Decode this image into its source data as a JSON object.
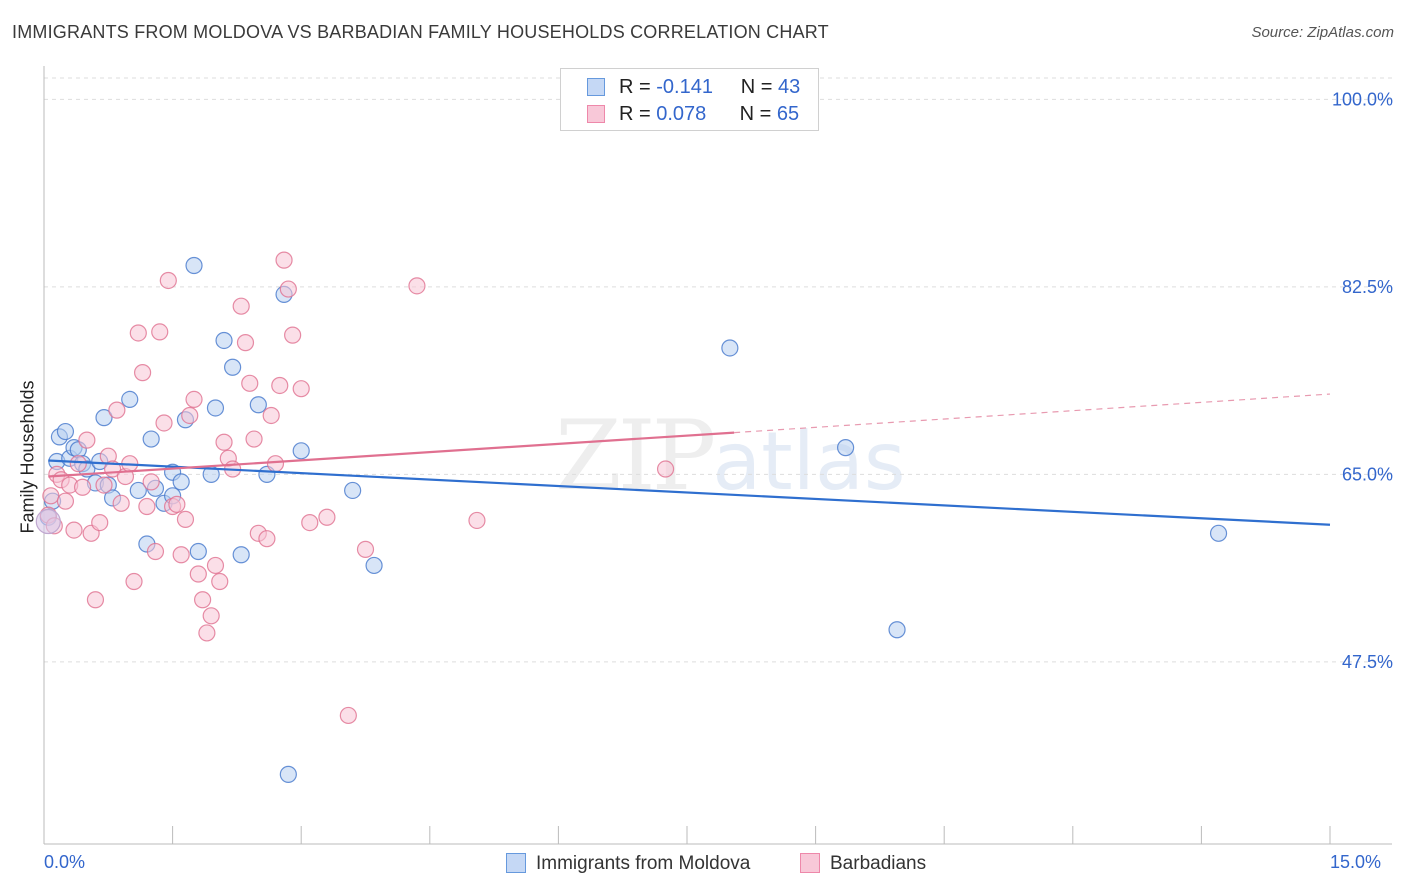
{
  "title": "IMMIGRANTS FROM MOLDOVA VS BARBADIAN FAMILY HOUSEHOLDS CORRELATION CHART",
  "source": "Source: ZipAtlas.com",
  "watermark": {
    "zip": "ZIP",
    "atlas": "atlas"
  },
  "legend": {
    "rows": [
      {
        "r_label": "R =",
        "r_value": "-0.141",
        "n_label": "N =",
        "n_value": "43",
        "color": "#6699dd",
        "fill": "#c5d8f5"
      },
      {
        "r_label": "R =",
        "r_value": "0.078",
        "n_label": "N =",
        "n_value": "65",
        "color": "#ee88aa",
        "fill": "#f8c8d8"
      }
    ]
  },
  "chart_data": {
    "type": "scatter",
    "title": "IMMIGRANTS FROM MOLDOVA VS BARBADIAN FAMILY HOUSEHOLDS CORRELATION CHART",
    "xlabel": "",
    "ylabel": "Family Households",
    "xlim": [
      0,
      15
    ],
    "ylim": [
      30.5,
      102
    ],
    "x_tick_labels": [
      "0.0%",
      "15.0%"
    ],
    "y_ticks": [
      47.5,
      65.0,
      82.5,
      100.0
    ],
    "y_tick_labels": [
      "47.5%",
      "65.0%",
      "82.5%",
      "100.0%"
    ],
    "grid": true,
    "series": [
      {
        "name": "Immigrants from Moldova",
        "color": "#4477cc",
        "fill": "#b8d0f0",
        "trend": {
          "x": [
            0.05,
            15.0
          ],
          "y": [
            66.3,
            60.3
          ]
        },
        "points": [
          [
            0.05,
            61.0
          ],
          [
            0.1,
            62.5
          ],
          [
            0.15,
            66.2
          ],
          [
            0.18,
            68.5
          ],
          [
            0.25,
            69.0
          ],
          [
            0.3,
            66.5
          ],
          [
            0.35,
            67.5
          ],
          [
            0.4,
            67.3
          ],
          [
            0.45,
            66.0
          ],
          [
            0.5,
            65.5
          ],
          [
            0.6,
            64.2
          ],
          [
            0.65,
            66.2
          ],
          [
            0.7,
            70.3
          ],
          [
            0.75,
            64.0
          ],
          [
            0.8,
            62.8
          ],
          [
            1.0,
            72.0
          ],
          [
            1.1,
            63.5
          ],
          [
            1.2,
            58.5
          ],
          [
            1.25,
            68.3
          ],
          [
            1.3,
            63.7
          ],
          [
            1.4,
            62.3
          ],
          [
            1.5,
            65.2
          ],
          [
            1.6,
            64.3
          ],
          [
            1.65,
            70.1
          ],
          [
            1.75,
            84.5
          ],
          [
            1.8,
            57.8
          ],
          [
            1.95,
            65.0
          ],
          [
            2.0,
            71.2
          ],
          [
            2.1,
            77.5
          ],
          [
            2.2,
            75.0
          ],
          [
            2.3,
            57.5
          ],
          [
            2.5,
            71.5
          ],
          [
            2.6,
            65.0
          ],
          [
            2.8,
            81.8
          ],
          [
            2.85,
            37.0
          ],
          [
            3.0,
            67.2
          ],
          [
            3.6,
            63.5
          ],
          [
            3.85,
            56.5
          ],
          [
            8.0,
            76.8
          ],
          [
            9.35,
            67.5
          ],
          [
            9.95,
            50.5
          ],
          [
            13.7,
            59.5
          ],
          [
            1.5,
            63.0
          ]
        ]
      },
      {
        "name": "Barbadians",
        "color": "#e07090",
        "fill": "#f8c5d5",
        "trend": {
          "x": [
            0.05,
            8.05
          ],
          "y": [
            64.8,
            68.9
          ]
        },
        "trend_dashed": {
          "x": [
            8.05,
            15.0
          ],
          "y": [
            68.9,
            72.5
          ]
        },
        "points": [
          [
            0.05,
            61.2
          ],
          [
            0.08,
            63.0
          ],
          [
            0.12,
            60.2
          ],
          [
            0.15,
            65.0
          ],
          [
            0.2,
            64.5
          ],
          [
            0.25,
            62.5
          ],
          [
            0.3,
            64.0
          ],
          [
            0.35,
            59.8
          ],
          [
            0.4,
            66.0
          ],
          [
            0.45,
            63.8
          ],
          [
            0.5,
            68.2
          ],
          [
            0.55,
            59.5
          ],
          [
            0.6,
            53.3
          ],
          [
            0.65,
            60.5
          ],
          [
            0.7,
            64.0
          ],
          [
            0.75,
            66.7
          ],
          [
            0.8,
            65.5
          ],
          [
            0.85,
            71.0
          ],
          [
            0.9,
            62.3
          ],
          [
            0.95,
            64.8
          ],
          [
            1.0,
            66.0
          ],
          [
            1.05,
            55.0
          ],
          [
            1.1,
            78.2
          ],
          [
            1.15,
            74.5
          ],
          [
            1.2,
            62.0
          ],
          [
            1.25,
            64.3
          ],
          [
            1.3,
            57.8
          ],
          [
            1.35,
            78.3
          ],
          [
            1.4,
            69.8
          ],
          [
            1.45,
            83.1
          ],
          [
            1.5,
            62.0
          ],
          [
            1.55,
            62.2
          ],
          [
            1.6,
            57.5
          ],
          [
            1.65,
            60.8
          ],
          [
            1.7,
            70.5
          ],
          [
            1.75,
            72.0
          ],
          [
            1.8,
            55.7
          ],
          [
            1.85,
            53.3
          ],
          [
            1.9,
            50.2
          ],
          [
            1.95,
            51.8
          ],
          [
            2.0,
            56.5
          ],
          [
            2.05,
            55.0
          ],
          [
            2.1,
            68.0
          ],
          [
            2.15,
            66.5
          ],
          [
            2.2,
            65.5
          ],
          [
            2.3,
            80.7
          ],
          [
            2.35,
            77.3
          ],
          [
            2.4,
            73.5
          ],
          [
            2.45,
            68.3
          ],
          [
            2.5,
            59.5
          ],
          [
            2.6,
            59.0
          ],
          [
            2.65,
            70.5
          ],
          [
            2.7,
            66.0
          ],
          [
            2.75,
            73.3
          ],
          [
            2.8,
            85.0
          ],
          [
            2.85,
            82.3
          ],
          [
            2.9,
            78.0
          ],
          [
            3.0,
            73.0
          ],
          [
            3.1,
            60.5
          ],
          [
            3.3,
            61.0
          ],
          [
            3.55,
            42.5
          ],
          [
            3.75,
            58.0
          ],
          [
            4.35,
            82.6
          ],
          [
            5.05,
            60.7
          ],
          [
            7.25,
            65.5
          ]
        ]
      }
    ]
  },
  "axes": {
    "y_title": "Family Households",
    "x_min_label": "0.0%",
    "x_max_label": "15.0%"
  },
  "bottom_legend": {
    "moldova": "Immigrants from Moldova",
    "barbadians": "Barbadians"
  }
}
